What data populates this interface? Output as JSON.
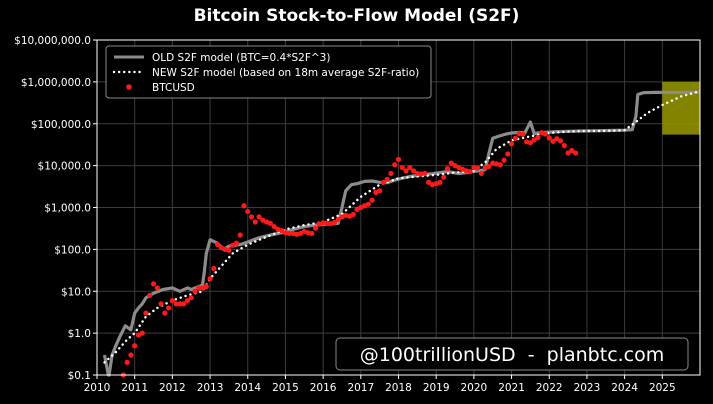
{
  "chart_data": {
    "type": "line",
    "title": "Bitcoin Stock-to-Flow Model (S2F)",
    "yscale": "log",
    "xlim": [
      2010,
      2026
    ],
    "ylim": [
      0.1,
      10000000
    ],
    "grid": true,
    "x_ticks": [
      "2010",
      "2011",
      "2012",
      "2013",
      "2014",
      "2015",
      "2016",
      "2017",
      "2018",
      "2019",
      "2020",
      "2021",
      "2022",
      "2023",
      "2024",
      "2025"
    ],
    "y_ticks": [
      {
        "value": 10000000,
        "label": "$10,000,000.0"
      },
      {
        "value": 1000000,
        "label": "$1,000,000.0"
      },
      {
        "value": 100000,
        "label": "$100,000.0"
      },
      {
        "value": 10000,
        "label": "$10,000.0"
      },
      {
        "value": 1000,
        "label": "$1,000.0"
      },
      {
        "value": 100,
        "label": "$100.0"
      },
      {
        "value": 10,
        "label": "$10.0"
      },
      {
        "value": 1,
        "label": "$1.0"
      },
      {
        "value": 0.1,
        "label": "$0.1"
      }
    ],
    "legend": {
      "placement": "top-left",
      "entries": [
        {
          "label": "OLD S2F model (BTC=0.4*S2F^3)",
          "style": "line",
          "color": "#8c8c8c"
        },
        {
          "label": "NEW S2F model (based on 18m average S2F-ratio)",
          "style": "dotted",
          "color": "#ffffff"
        },
        {
          "label": "BTCUSD",
          "style": "marker",
          "color": "#ff1a1a"
        }
      ]
    },
    "watermark": "@100trillionUSD  -  planbtc.com",
    "highlight_band": {
      "x": [
        2025.0,
        2026.0
      ],
      "y": [
        55000,
        1000000
      ],
      "color": "#9a9a00"
    },
    "series": [
      {
        "name": "OLD S2F model (BTC=0.4*S2F^3)",
        "style": "line",
        "color": "#8c8c8c",
        "x": [
          2010.2,
          2010.3,
          2010.32,
          2010.4,
          2010.5,
          2010.6,
          2010.75,
          2010.9,
          2011.0,
          2011.1,
          2011.2,
          2011.3,
          2011.5,
          2011.75,
          2012.0,
          2012.2,
          2012.4,
          2012.5,
          2012.8,
          2012.85,
          2012.9,
          2013.0,
          2013.2,
          2013.35,
          2013.5,
          2013.8,
          2014.0,
          2014.3,
          2014.6,
          2014.9,
          2015.2,
          2015.5,
          2015.8,
          2016.1,
          2016.4,
          2016.5,
          2016.6,
          2016.75,
          2016.9,
          2017.1,
          2017.3,
          2017.5,
          2017.7,
          2017.9,
          2018.1,
          2018.3,
          2018.6,
          2018.9,
          2019.1,
          2019.3,
          2019.6,
          2019.9,
          2020.1,
          2020.3,
          2020.4,
          2020.5,
          2020.65,
          2020.8,
          2021.0,
          2021.2,
          2021.35,
          2021.5,
          2021.6,
          2021.7,
          2021.9,
          2022.2,
          2022.5,
          2022.8,
          2023.2,
          2023.6,
          2024.0,
          2024.2,
          2024.3,
          2024.35,
          2024.5,
          2024.8,
          2025.2,
          2025.7,
          2026.0
        ],
        "y": [
          0.3,
          0.1,
          0.1,
          0.3,
          0.5,
          0.8,
          1.5,
          1.2,
          3,
          4,
          5,
          7,
          9,
          11,
          12,
          10,
          12,
          11,
          14,
          30,
          80,
          170,
          140,
          100,
          120,
          130,
          150,
          190,
          220,
          250,
          300,
          350,
          380,
          400,
          420,
          1000,
          2500,
          3500,
          3700,
          4200,
          4300,
          4000,
          3900,
          4500,
          5000,
          5500,
          6000,
          6400,
          6800,
          7200,
          6500,
          7000,
          7500,
          8000,
          20000,
          45000,
          50000,
          55000,
          60000,
          62000,
          60000,
          110000,
          58000,
          60000,
          62000,
          65000,
          66000,
          67000,
          68000,
          69000,
          70000,
          72000,
          150000,
          500000,
          550000,
          560000,
          560000,
          565000,
          570000
        ]
      },
      {
        "name": "NEW S2F model (based on 18m average S2F-ratio)",
        "style": "dotted",
        "color": "#ffffff",
        "x": [
          2010.2,
          2010.5,
          2010.8,
          2011.0,
          2011.3,
          2011.6,
          2012.0,
          2012.4,
          2012.8,
          2013.0,
          2013.3,
          2013.6,
          2014.0,
          2014.5,
          2015.0,
          2015.5,
          2016.0,
          2016.5,
          2017.0,
          2017.5,
          2018.0,
          2018.5,
          2019.0,
          2019.5,
          2020.0,
          2020.3,
          2020.6,
          2021.0,
          2021.5,
          2022.0,
          2022.5,
          2023.0,
          2023.5,
          2024.0,
          2024.3,
          2024.6,
          2025.0,
          2025.5,
          2026.0
        ],
        "y": [
          0.2,
          0.35,
          0.7,
          1.0,
          2.5,
          4,
          6,
          8,
          10,
          20,
          40,
          80,
          130,
          200,
          300,
          380,
          450,
          700,
          1800,
          3500,
          5000,
          5500,
          6000,
          6800,
          7500,
          12000,
          25000,
          40000,
          50000,
          60000,
          65000,
          67000,
          68000,
          70000,
          110000,
          180000,
          280000,
          450000,
          600000
        ]
      },
      {
        "name": "BTCUSD",
        "style": "marker",
        "color": "#ff1a1a",
        "x": [
          2010.6,
          2010.7,
          2010.8,
          2010.9,
          2011.0,
          2011.1,
          2011.2,
          2011.3,
          2011.4,
          2011.5,
          2011.6,
          2011.7,
          2011.8,
          2011.9,
          2012.0,
          2012.1,
          2012.2,
          2012.3,
          2012.4,
          2012.5,
          2012.6,
          2012.7,
          2012.8,
          2012.9,
          2013.0,
          2013.1,
          2013.2,
          2013.3,
          2013.4,
          2013.5,
          2013.6,
          2013.7,
          2013.8,
          2013.9,
          2014.0,
          2014.1,
          2014.2,
          2014.3,
          2014.4,
          2014.5,
          2014.6,
          2014.7,
          2014.8,
          2014.9,
          2015.0,
          2015.1,
          2015.2,
          2015.3,
          2015.4,
          2015.5,
          2015.6,
          2015.7,
          2015.8,
          2015.9,
          2016.0,
          2016.1,
          2016.2,
          2016.3,
          2016.4,
          2016.5,
          2016.6,
          2016.7,
          2016.8,
          2016.9,
          2017.0,
          2017.1,
          2017.2,
          2017.3,
          2017.4,
          2017.5,
          2017.6,
          2017.7,
          2017.8,
          2017.9,
          2018.0,
          2018.1,
          2018.2,
          2018.3,
          2018.4,
          2018.5,
          2018.6,
          2018.7,
          2018.8,
          2018.9,
          2019.0,
          2019.1,
          2019.2,
          2019.3,
          2019.4,
          2019.5,
          2019.6,
          2019.7,
          2019.8,
          2019.9,
          2020.0,
          2020.1,
          2020.2,
          2020.3,
          2020.4,
          2020.5,
          2020.6,
          2020.7,
          2020.8,
          2020.9,
          2021.0,
          2021.1,
          2021.2,
          2021.3,
          2021.4,
          2021.5,
          2021.6,
          2021.7,
          2021.8,
          2021.9,
          2022.0,
          2022.1,
          2022.2,
          2022.3,
          2022.4,
          2022.5,
          2022.6,
          2022.7
        ],
        "y": [
          0.07,
          0.1,
          0.2,
          0.3,
          0.5,
          0.9,
          1.0,
          3,
          8,
          15,
          12,
          5,
          3,
          4,
          6,
          5,
          5,
          5,
          6,
          7,
          10,
          12,
          12,
          13,
          20,
          35,
          130,
          110,
          100,
          95,
          125,
          140,
          220,
          1100,
          800,
          600,
          450,
          600,
          500,
          450,
          420,
          350,
          300,
          280,
          250,
          240,
          240,
          230,
          240,
          270,
          250,
          240,
          320,
          400,
          430,
          420,
          410,
          440,
          520,
          600,
          650,
          620,
          680,
          900,
          1000,
          1100,
          1200,
          1500,
          2300,
          2500,
          4000,
          4700,
          6500,
          10500,
          14000,
          9000,
          7500,
          9000,
          7500,
          6500,
          6300,
          6500,
          4000,
          3500,
          3700,
          4000,
          5300,
          8500,
          11500,
          10000,
          9000,
          8200,
          7500,
          7200,
          9000,
          8800,
          6500,
          8900,
          9500,
          11500,
          11000,
          10500,
          13500,
          19000,
          33000,
          45000,
          58000,
          56000,
          37000,
          35000,
          41000,
          47000,
          61000,
          57000,
          46000,
          38000,
          44000,
          39000,
          30000,
          20000,
          23000,
          20000
        ]
      }
    ]
  }
}
